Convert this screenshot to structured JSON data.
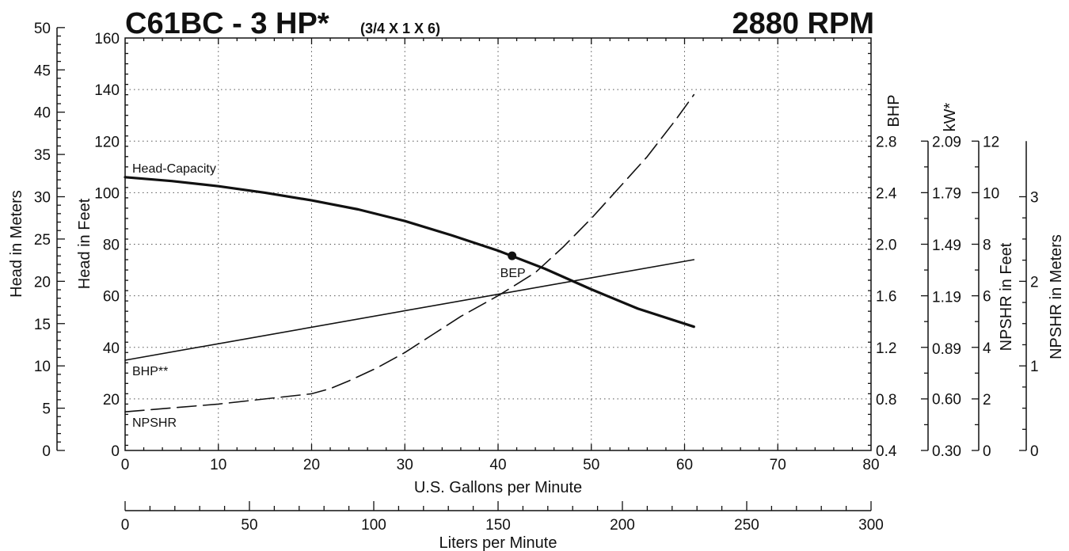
{
  "chart_data": {
    "type": "line",
    "title": "C61BC - 3 HP*",
    "subtitle": "(3/4 X 1 X 6)",
    "speed_label": "2880 RPM",
    "xlabel": "U.S. Gallons per Minute",
    "x2label": "Liters per Minute",
    "ylabel": "Head in Feet",
    "ylabel_meters": "Head in Meters",
    "ylabel_bhp": "BHP",
    "ylabel_kw": "kW*",
    "ylabel_npshr_ft": "NPSHR in Feet",
    "ylabel_npshr_m": "NPSHR in Meters",
    "xlim": [
      0,
      80
    ],
    "ylim": [
      0,
      160
    ],
    "grid": true,
    "x_ticks": [
      "0",
      "10",
      "20",
      "30",
      "40",
      "50",
      "60",
      "70",
      "80"
    ],
    "y_ticks": [
      "0",
      "20",
      "40",
      "60",
      "80",
      "100",
      "120",
      "140",
      "160"
    ],
    "meters_ticks": [
      "0",
      "5",
      "10",
      "15",
      "20",
      "25",
      "30",
      "35",
      "40",
      "45",
      "50"
    ],
    "bhp_ticks": [
      "0.4",
      "0.8",
      "1.2",
      "1.6",
      "2.0",
      "2.4",
      "2.8"
    ],
    "kw_ticks": [
      "0.30",
      "0.60",
      "0.89",
      "1.19",
      "1.49",
      "1.79",
      "2.09"
    ],
    "npshr_ft_ticks": [
      "0",
      "2",
      "4",
      "6",
      "8",
      "10",
      "12"
    ],
    "npshr_m_ticks": [
      "0",
      "1",
      "2",
      "3"
    ],
    "lpm_ticks": [
      "0",
      "50",
      "100",
      "150",
      "200",
      "250",
      "300"
    ],
    "series": [
      {
        "name": "Head-Capacity",
        "style": "thick",
        "x": [
          0,
          5,
          10,
          15,
          20,
          25,
          30,
          35,
          40,
          45,
          50,
          55,
          61
        ],
        "y": [
          106,
          104.5,
          102.5,
          100,
          97,
          93.5,
          89,
          83.5,
          77.5,
          70.5,
          62.5,
          55,
          48
        ]
      },
      {
        "name": "BHP**",
        "style": "thin",
        "x": [
          0,
          61
        ],
        "y": [
          35,
          74
        ]
      },
      {
        "name": "NPSHR",
        "style": "dashed",
        "x": [
          0,
          10,
          20,
          22,
          24,
          27,
          30,
          33,
          36,
          40,
          44,
          47,
          50,
          53,
          56,
          59,
          61
        ],
        "y": [
          15,
          18,
          22,
          24,
          27,
          32,
          38,
          45,
          52,
          60,
          69,
          79,
          90,
          102,
          114,
          128,
          138
        ]
      }
    ],
    "points": [
      {
        "label": "BEP",
        "x": 41.5,
        "y": 75.5
      }
    ],
    "colors": {
      "line": "#111111",
      "background": "#ffffff"
    }
  }
}
